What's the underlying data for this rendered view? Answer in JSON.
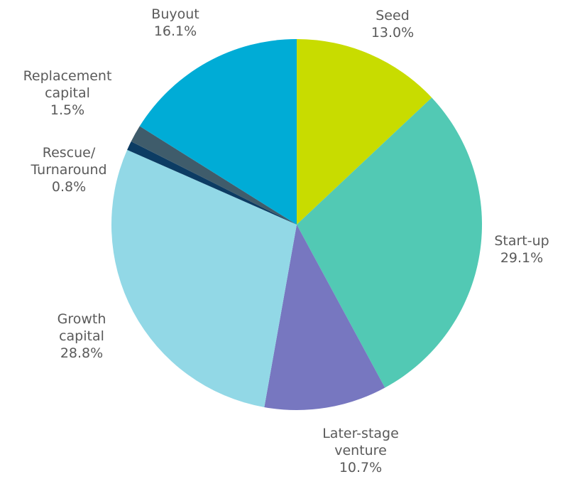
{
  "chart_data": {
    "type": "pie",
    "categories": [
      [
        "Seed"
      ],
      [
        "Start-up"
      ],
      [
        "Later-stage",
        "venture"
      ],
      [
        "Growth",
        "capital"
      ],
      [
        "Rescue/",
        "Turnaround"
      ],
      [
        "Replacement",
        "capital"
      ],
      [
        "Buyout"
      ]
    ],
    "values": [
      13.0,
      29.1,
      10.7,
      28.8,
      0.8,
      1.5,
      16.1
    ],
    "value_labels": [
      "13.0%",
      "29.1%",
      "10.7%",
      "28.8%",
      "0.8%",
      "1.5%",
      "16.1%"
    ],
    "colors": [
      "#c8dc00",
      "#52c9b4",
      "#7777c0",
      "#92d8e6",
      "#0c3c63",
      "#3f5c6b",
      "#00acd6"
    ]
  }
}
